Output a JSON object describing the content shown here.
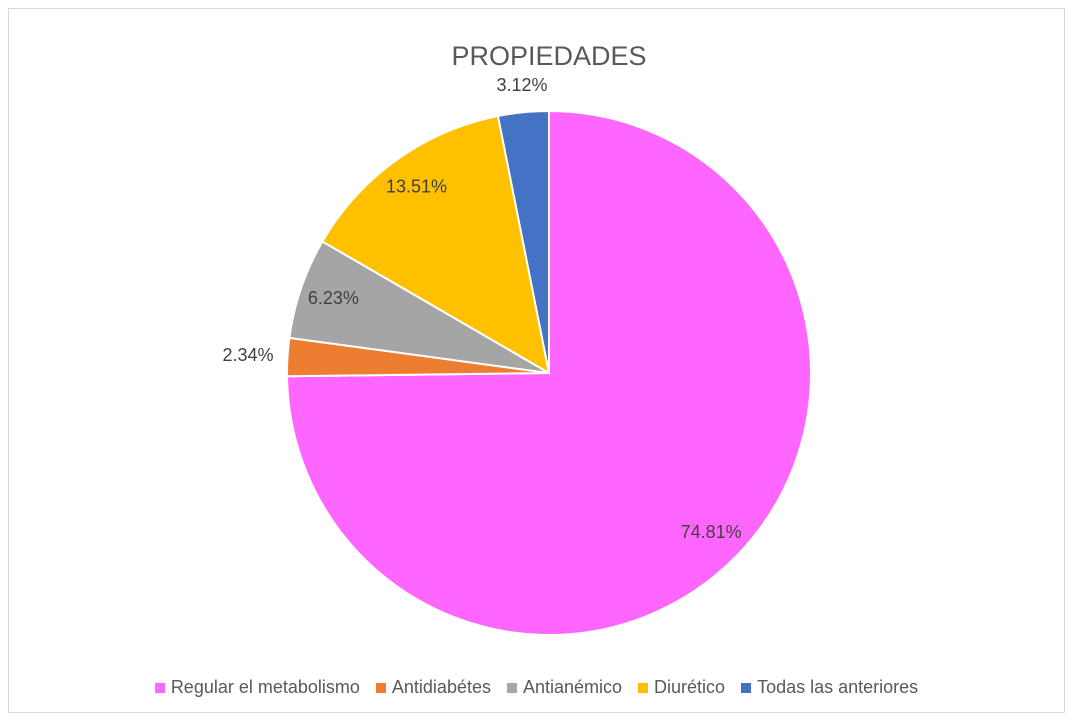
{
  "chart_data": {
    "type": "pie",
    "title": "PROPIEDADES",
    "categories": [
      "Regular el metabolismo",
      "Antidiabétes",
      "Antianémico",
      "Diurético",
      "Todas las anteriores"
    ],
    "values": [
      74.81,
      2.34,
      6.23,
      13.51,
      3.12
    ],
    "value_labels": [
      "74.81%",
      "2.34%",
      "6.23%",
      "13.51%",
      "3.12%"
    ],
    "colors": [
      "#ff66ff",
      "#ed7d31",
      "#a5a5a5",
      "#ffc000",
      "#4472c4"
    ],
    "legend": "bottom"
  }
}
